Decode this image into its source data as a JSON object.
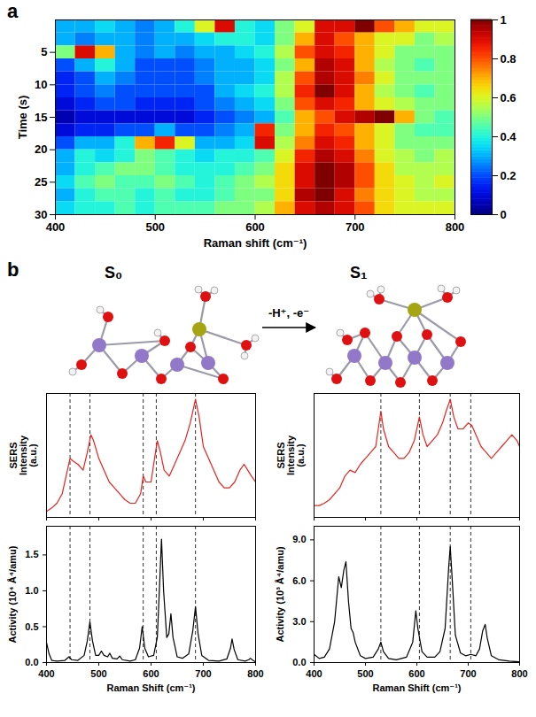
{
  "panel_labels": [
    "a",
    "b"
  ],
  "diagram": {
    "reactant": "S₀",
    "product": "S₁",
    "arrow_label": "-H⁺, -e⁻"
  },
  "chart_data": [
    {
      "type": "heatmap",
      "xlabel": "Raman shift (cm⁻¹)",
      "ylabel": "Time (s)",
      "xlim": [
        400,
        800
      ],
      "xticks": [
        400,
        500,
        600,
        700,
        800
      ],
      "ylim": [
        0,
        30
      ],
      "yticks": [
        5,
        10,
        15,
        20,
        25,
        30
      ],
      "x_bins": [
        400,
        420,
        440,
        460,
        480,
        500,
        520,
        540,
        560,
        580,
        600,
        620,
        640,
        660,
        680,
        700,
        720,
        740,
        760,
        780,
        800
      ],
      "y_bins": [
        0,
        2,
        4,
        6,
        8,
        10,
        12,
        14,
        16,
        18,
        20,
        22,
        24,
        26,
        28,
        30
      ],
      "values": [
        [
          0.3,
          0.3,
          0.35,
          0.3,
          0.25,
          0.3,
          0.4,
          0.6,
          0.9,
          0.4,
          0.35,
          0.5,
          0.6,
          0.9,
          0.9,
          1.0,
          0.8,
          0.7,
          0.6,
          0.6
        ],
        [
          0.3,
          0.25,
          0.3,
          0.3,
          0.25,
          0.3,
          0.3,
          0.35,
          0.4,
          0.4,
          0.35,
          0.5,
          0.7,
          0.9,
          0.8,
          0.7,
          0.6,
          0.6,
          0.5,
          0.55
        ],
        [
          0.5,
          0.9,
          0.7,
          0.3,
          0.25,
          0.3,
          0.25,
          0.3,
          0.3,
          0.35,
          0.4,
          0.55,
          0.8,
          0.9,
          0.85,
          0.7,
          0.6,
          0.5,
          0.5,
          0.5
        ],
        [
          0.2,
          0.3,
          0.4,
          0.3,
          0.2,
          0.2,
          0.2,
          0.25,
          0.3,
          0.3,
          0.35,
          0.5,
          0.7,
          0.95,
          0.9,
          0.7,
          0.55,
          0.5,
          0.45,
          0.5
        ],
        [
          0.15,
          0.2,
          0.3,
          0.25,
          0.2,
          0.2,
          0.2,
          0.25,
          0.3,
          0.3,
          0.35,
          0.55,
          0.8,
          0.95,
          0.9,
          0.75,
          0.6,
          0.5,
          0.5,
          0.5
        ],
        [
          0.15,
          0.2,
          0.25,
          0.2,
          0.2,
          0.2,
          0.2,
          0.2,
          0.3,
          0.35,
          0.4,
          0.55,
          0.85,
          1.0,
          0.9,
          0.7,
          0.55,
          0.5,
          0.45,
          0.5
        ],
        [
          0.1,
          0.15,
          0.2,
          0.2,
          0.15,
          0.15,
          0.15,
          0.2,
          0.25,
          0.3,
          0.35,
          0.5,
          0.8,
          0.9,
          0.85,
          0.7,
          0.6,
          0.55,
          0.5,
          0.5
        ],
        [
          0.05,
          0.1,
          0.1,
          0.1,
          0.1,
          0.1,
          0.1,
          0.15,
          0.2,
          0.25,
          0.3,
          0.45,
          0.7,
          0.8,
          0.9,
          0.95,
          1.0,
          0.7,
          0.5,
          0.45
        ],
        [
          0.1,
          0.15,
          0.15,
          0.2,
          0.2,
          0.3,
          0.2,
          0.2,
          0.25,
          0.3,
          0.85,
          0.5,
          0.7,
          0.85,
          0.8,
          0.7,
          0.6,
          0.5,
          0.45,
          0.45
        ],
        [
          0.2,
          0.3,
          0.3,
          0.4,
          0.7,
          0.85,
          0.6,
          0.3,
          0.3,
          0.35,
          0.9,
          0.55,
          0.75,
          0.9,
          0.85,
          0.7,
          0.6,
          0.5,
          0.5,
          0.5
        ],
        [
          0.3,
          0.4,
          0.35,
          0.4,
          0.5,
          0.45,
          0.4,
          0.35,
          0.4,
          0.4,
          0.45,
          0.6,
          0.85,
          0.95,
          0.9,
          0.75,
          0.6,
          0.55,
          0.5,
          0.55
        ],
        [
          0.3,
          0.4,
          0.45,
          0.5,
          0.5,
          0.45,
          0.4,
          0.4,
          0.4,
          0.45,
          0.5,
          0.65,
          0.9,
          1.0,
          0.95,
          0.8,
          0.65,
          0.55,
          0.55,
          0.55
        ],
        [
          0.35,
          0.45,
          0.5,
          0.45,
          0.45,
          0.5,
          0.45,
          0.4,
          0.45,
          0.5,
          0.55,
          0.65,
          0.9,
          1.0,
          0.95,
          0.8,
          0.65,
          0.6,
          0.55,
          0.6
        ],
        [
          0.3,
          0.4,
          0.45,
          0.45,
          0.4,
          0.45,
          0.4,
          0.4,
          0.45,
          0.5,
          0.5,
          0.65,
          0.95,
          1.0,
          0.9,
          0.75,
          0.65,
          0.6,
          0.55,
          0.55
        ],
        [
          0.35,
          0.4,
          0.4,
          0.45,
          0.4,
          0.45,
          0.45,
          0.45,
          0.5,
          0.5,
          0.55,
          0.7,
          0.9,
          0.95,
          0.9,
          0.8,
          0.65,
          0.6,
          0.6,
          0.6
        ]
      ],
      "colorbar": {
        "lim": [
          0,
          1
        ],
        "ticks": [
          0,
          0.2,
          0.4,
          0.6,
          0.8,
          1
        ]
      }
    },
    {
      "type": "line",
      "ylabel": "SERS Intensity (a.u.)",
      "color": "#e8231f",
      "xlim": [
        400,
        800
      ],
      "xticks": [
        400,
        500,
        600,
        700,
        800
      ],
      "ylim": [
        0,
        1.05
      ],
      "tick_labels": false,
      "reference_lines": [
        445,
        483,
        585,
        610,
        685
      ],
      "x": [
        400,
        410,
        420,
        430,
        440,
        445,
        450,
        460,
        470,
        478,
        485,
        490,
        500,
        510,
        520,
        530,
        540,
        550,
        560,
        570,
        580,
        585,
        590,
        600,
        605,
        612,
        618,
        625,
        635,
        645,
        655,
        665,
        675,
        685,
        692,
        700,
        710,
        720,
        730,
        740,
        750,
        760,
        770,
        778,
        785,
        792,
        800
      ],
      "values": [
        0.05,
        0.08,
        0.12,
        0.2,
        0.4,
        0.5,
        0.48,
        0.45,
        0.4,
        0.55,
        0.7,
        0.65,
        0.5,
        0.4,
        0.3,
        0.25,
        0.2,
        0.15,
        0.12,
        0.12,
        0.2,
        0.35,
        0.3,
        0.3,
        0.45,
        0.65,
        0.55,
        0.4,
        0.35,
        0.45,
        0.55,
        0.65,
        0.8,
        1.0,
        0.85,
        0.6,
        0.5,
        0.4,
        0.3,
        0.25,
        0.25,
        0.3,
        0.4,
        0.45,
        0.4,
        0.35,
        0.3
      ]
    },
    {
      "type": "line",
      "xlabel": "Raman Shift (cm⁻¹)",
      "ylabel": "Activity (10⁴ Å⁴/amu)",
      "color": "#000000",
      "xlim": [
        400,
        800
      ],
      "xticks": [
        400,
        500,
        600,
        700,
        800
      ],
      "ylim": [
        0,
        1.9
      ],
      "yticks": [
        {
          "value": 0,
          "label": "0.0"
        },
        {
          "value": 0.5,
          "label": "0.5"
        },
        {
          "value": 1,
          "label": "1.0"
        },
        {
          "value": 1.5,
          "label": "1.5"
        }
      ],
      "reference_lines": [
        445,
        483,
        585,
        610,
        685
      ],
      "x": [
        400,
        405,
        410,
        420,
        435,
        443,
        448,
        460,
        472,
        478,
        483,
        488,
        494,
        500,
        505,
        510,
        517,
        521,
        526,
        535,
        540,
        545,
        560,
        570,
        578,
        583,
        588,
        595,
        605,
        612,
        617,
        620,
        624,
        630,
        634,
        638,
        642,
        650,
        660,
        672,
        680,
        685,
        690,
        697,
        710,
        730,
        745,
        752,
        755,
        759,
        766,
        780,
        787,
        790,
        795,
        800
      ],
      "values": [
        0.28,
        0.12,
        0.03,
        0.02,
        0.03,
        0.08,
        0.04,
        0.03,
        0.1,
        0.3,
        0.57,
        0.3,
        0.1,
        0.1,
        0.16,
        0.1,
        0.08,
        0.13,
        0.06,
        0.05,
        0.09,
        0.04,
        0.02,
        0.04,
        0.2,
        0.5,
        0.2,
        0.08,
        0.1,
        0.35,
        1.2,
        1.72,
        1.0,
        0.35,
        0.4,
        0.68,
        0.35,
        0.08,
        0.06,
        0.12,
        0.45,
        0.78,
        0.4,
        0.1,
        0.03,
        0.02,
        0.05,
        0.2,
        0.33,
        0.18,
        0.04,
        0.02,
        0.04,
        0.06,
        0.03,
        0.01
      ]
    },
    {
      "type": "line",
      "ylabel": "SERS Intensity (a.u.)",
      "color": "#e8231f",
      "xlim": [
        400,
        800
      ],
      "xticks": [
        400,
        500,
        600,
        700,
        800
      ],
      "ylim": [
        0,
        1.05
      ],
      "tick_labels": false,
      "reference_lines": [
        530,
        605,
        665,
        705
      ],
      "x": [
        400,
        410,
        420,
        430,
        440,
        450,
        460,
        470,
        480,
        490,
        500,
        510,
        520,
        530,
        535,
        545,
        555,
        565,
        575,
        585,
        595,
        605,
        612,
        620,
        630,
        640,
        650,
        657,
        665,
        672,
        680,
        690,
        700,
        707,
        715,
        725,
        735,
        745,
        755,
        765,
        775,
        785,
        795,
        800
      ],
      "values": [
        0.1,
        0.1,
        0.12,
        0.15,
        0.2,
        0.25,
        0.35,
        0.4,
        0.38,
        0.45,
        0.5,
        0.55,
        0.6,
        0.9,
        0.75,
        0.6,
        0.55,
        0.5,
        0.5,
        0.55,
        0.65,
        0.85,
        0.7,
        0.6,
        0.65,
        0.7,
        0.8,
        0.9,
        1.0,
        0.85,
        0.75,
        0.75,
        0.8,
        0.78,
        0.7,
        0.6,
        0.55,
        0.5,
        0.55,
        0.6,
        0.65,
        0.7,
        0.65,
        0.6
      ]
    },
    {
      "type": "line",
      "xlabel": "Raman Shift (cm⁻¹)",
      "ylabel": "Activity (10³ Å⁴/amu)",
      "color": "#000000",
      "xlim": [
        400,
        800
      ],
      "xticks": [
        400,
        500,
        600,
        700,
        800
      ],
      "ylim": [
        0,
        10
      ],
      "yticks": [
        {
          "value": 0,
          "label": "0.0"
        },
        {
          "value": 3,
          "label": "3.0"
        },
        {
          "value": 6,
          "label": "6.0"
        },
        {
          "value": 9,
          "label": "9.0"
        }
      ],
      "reference_lines": [
        530,
        605,
        665,
        705
      ],
      "x": [
        400,
        410,
        420,
        430,
        440,
        448,
        453,
        458,
        462,
        467,
        472,
        476,
        480,
        490,
        500,
        515,
        525,
        530,
        535,
        545,
        560,
        580,
        592,
        598,
        602,
        610,
        620,
        635,
        645,
        655,
        662,
        665,
        669,
        675,
        685,
        695,
        705,
        715,
        722,
        728,
        733,
        737,
        745,
        760,
        780,
        800
      ],
      "values": [
        0.6,
        0.3,
        0.4,
        1.0,
        3.0,
        6.3,
        5.5,
        6.8,
        7.4,
        4.5,
        2.5,
        2.2,
        1.5,
        0.5,
        0.3,
        0.4,
        1.0,
        1.5,
        0.8,
        0.3,
        0.2,
        0.4,
        1.5,
        3.8,
        2.5,
        0.8,
        0.4,
        0.4,
        0.8,
        2.5,
        7.0,
        8.5,
        6.0,
        2.0,
        0.7,
        0.5,
        0.6,
        0.5,
        1.0,
        2.3,
        2.8,
        1.8,
        0.5,
        0.2,
        0.1,
        0.05
      ]
    }
  ]
}
